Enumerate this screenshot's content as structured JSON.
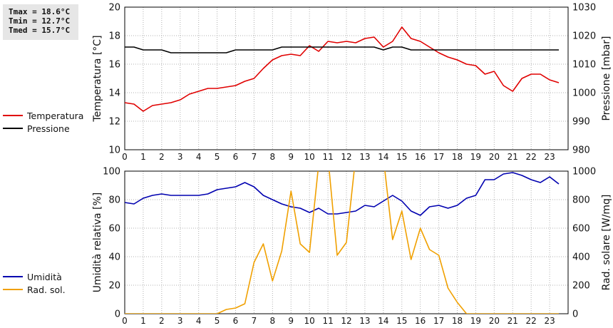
{
  "stats": {
    "tmax": "Tmax = 18.6°C",
    "tmin": "Tmin = 12.7°C",
    "tmed": "Tmed = 15.7°C"
  },
  "colors": {
    "temperature": "#e00000",
    "pressure": "#000000",
    "humidity": "#0000b0",
    "solar": "#f0a000",
    "grid": "#b0b0b0"
  },
  "chart_data": [
    {
      "type": "line",
      "ylabel": "Temperatura [°C]",
      "y2label": "Pressione [mbar]",
      "legend_position": "left",
      "grid": true,
      "xlim": [
        0,
        24
      ],
      "ylim": [
        10,
        20
      ],
      "y2lim": [
        980,
        1030
      ],
      "x_ticks": [
        "0",
        "1",
        "2",
        "3",
        "4",
        "5",
        "6",
        "7",
        "8",
        "9",
        "10",
        "11",
        "12",
        "13",
        "14",
        "15",
        "16",
        "17",
        "18",
        "19",
        "20",
        "21",
        "22",
        "23"
      ],
      "y_ticks": [
        "10",
        "12",
        "14",
        "16",
        "18",
        "20"
      ],
      "y2_ticks": [
        "980",
        "990",
        "1000",
        "1010",
        "1020",
        "1030"
      ],
      "series": [
        {
          "name": "Temperatura",
          "axis": "left",
          "x": [
            0,
            0.5,
            1,
            1.5,
            2,
            2.5,
            3,
            3.5,
            4,
            4.5,
            5,
            5.5,
            6,
            6.5,
            7,
            7.5,
            8,
            8.5,
            9,
            9.5,
            10,
            10.5,
            11,
            11.5,
            12,
            12.5,
            13,
            13.5,
            14,
            14.5,
            15,
            15.5,
            16,
            16.5,
            17,
            17.5,
            18,
            18.5,
            19,
            19.5,
            20,
            20.5,
            21,
            21.5,
            22,
            22.5,
            23,
            23.5
          ],
          "y": [
            13.3,
            13.2,
            12.7,
            13.1,
            13.2,
            13.3,
            13.5,
            13.9,
            14.1,
            14.3,
            14.3,
            14.4,
            14.5,
            14.8,
            15.0,
            15.7,
            16.3,
            16.6,
            16.7,
            16.6,
            17.3,
            16.9,
            17.6,
            17.5,
            17.6,
            17.5,
            17.8,
            17.9,
            17.2,
            17.6,
            18.6,
            17.8,
            17.6,
            17.2,
            16.8,
            16.5,
            16.3,
            16.0,
            15.9,
            15.3,
            15.5,
            14.5,
            14.1,
            15.0,
            15.3,
            15.3,
            14.9,
            14.7
          ]
        },
        {
          "name": "Pressione",
          "axis": "right",
          "x": [
            0,
            0.5,
            1,
            1.5,
            2,
            2.5,
            3,
            3.5,
            4,
            4.5,
            5,
            5.5,
            6,
            6.5,
            7,
            7.5,
            8,
            8.5,
            9,
            9.5,
            10,
            10.5,
            11,
            11.5,
            12,
            12.5,
            13,
            13.5,
            14,
            14.5,
            15,
            15.5,
            16,
            16.5,
            17,
            17.5,
            18,
            18.5,
            19,
            19.5,
            20,
            20.5,
            21,
            21.5,
            22,
            22.5,
            23,
            23.5
          ],
          "y": [
            1016,
            1016,
            1015,
            1015,
            1015,
            1014,
            1014,
            1014,
            1014,
            1014,
            1014,
            1014,
            1015,
            1015,
            1015,
            1015,
            1015,
            1016,
            1016,
            1016,
            1016,
            1016,
            1016,
            1016,
            1016,
            1016,
            1016,
            1016,
            1015,
            1016,
            1016,
            1015,
            1015,
            1015,
            1015,
            1015,
            1015,
            1015,
            1015,
            1015,
            1015,
            1015,
            1015,
            1015,
            1015,
            1015,
            1015,
            1015
          ]
        }
      ]
    },
    {
      "type": "line",
      "ylabel": "Umidità relativa [%]",
      "y2label": "Rad. solare [W/mq]",
      "legend_position": "left",
      "grid": true,
      "xlim": [
        0,
        24
      ],
      "ylim": [
        0,
        100
      ],
      "y2lim": [
        0,
        1000
      ],
      "x_ticks": [
        "0",
        "1",
        "2",
        "3",
        "4",
        "5",
        "6",
        "7",
        "8",
        "9",
        "10",
        "11",
        "12",
        "13",
        "14",
        "15",
        "16",
        "17",
        "18",
        "19",
        "20",
        "21",
        "22",
        "23"
      ],
      "y_ticks": [
        "0",
        "20",
        "40",
        "60",
        "80",
        "100"
      ],
      "y2_ticks": [
        "0",
        "200",
        "400",
        "600",
        "800",
        "1000"
      ],
      "series": [
        {
          "name": "Umidità",
          "axis": "left",
          "x": [
            0,
            0.5,
            1,
            1.5,
            2,
            2.5,
            3,
            3.5,
            4,
            4.5,
            5,
            5.5,
            6,
            6.5,
            7,
            7.5,
            8,
            8.5,
            9,
            9.5,
            10,
            10.5,
            11,
            11.5,
            12,
            12.5,
            13,
            13.5,
            14,
            14.5,
            15,
            15.5,
            16,
            16.5,
            17,
            17.5,
            18,
            18.5,
            19,
            19.5,
            20,
            20.5,
            21,
            21.5,
            22,
            22.5,
            23,
            23.5
          ],
          "y": [
            78,
            77,
            81,
            83,
            84,
            83,
            83,
            83,
            83,
            84,
            87,
            88,
            89,
            92,
            89,
            83,
            80,
            77,
            75,
            74,
            71,
            74,
            70,
            70,
            71,
            72,
            76,
            75,
            79,
            83,
            79,
            72,
            69,
            75,
            76,
            74,
            76,
            81,
            83,
            94,
            94,
            98,
            99,
            97,
            94,
            92,
            96,
            91
          ]
        },
        {
          "name": "Rad. sol.",
          "axis": "right",
          "x": [
            0,
            0.5,
            1,
            1.5,
            2,
            2.5,
            3,
            3.5,
            4,
            4.5,
            5,
            5.5,
            6,
            6.5,
            7,
            7.5,
            8,
            8.5,
            9,
            9.5,
            10,
            10.5,
            11,
            11.5,
            12,
            12.5,
            13,
            13.5,
            14,
            14.5,
            15,
            15.5,
            16,
            16.5,
            17,
            17.5,
            18,
            18.5,
            19,
            19.5,
            20,
            20.5,
            21,
            21.5,
            22,
            22.5,
            23,
            23.5
          ],
          "y": [
            0,
            0,
            0,
            0,
            0,
            0,
            0,
            0,
            0,
            0,
            0,
            30,
            40,
            70,
            360,
            490,
            230,
            440,
            860,
            490,
            430,
            1050,
            1100,
            410,
            500,
            1100,
            1100,
            1100,
            1100,
            520,
            720,
            380,
            600,
            450,
            410,
            180,
            80,
            0,
            0,
            0,
            0,
            0,
            0,
            0,
            0,
            0,
            0,
            0
          ]
        }
      ]
    }
  ]
}
